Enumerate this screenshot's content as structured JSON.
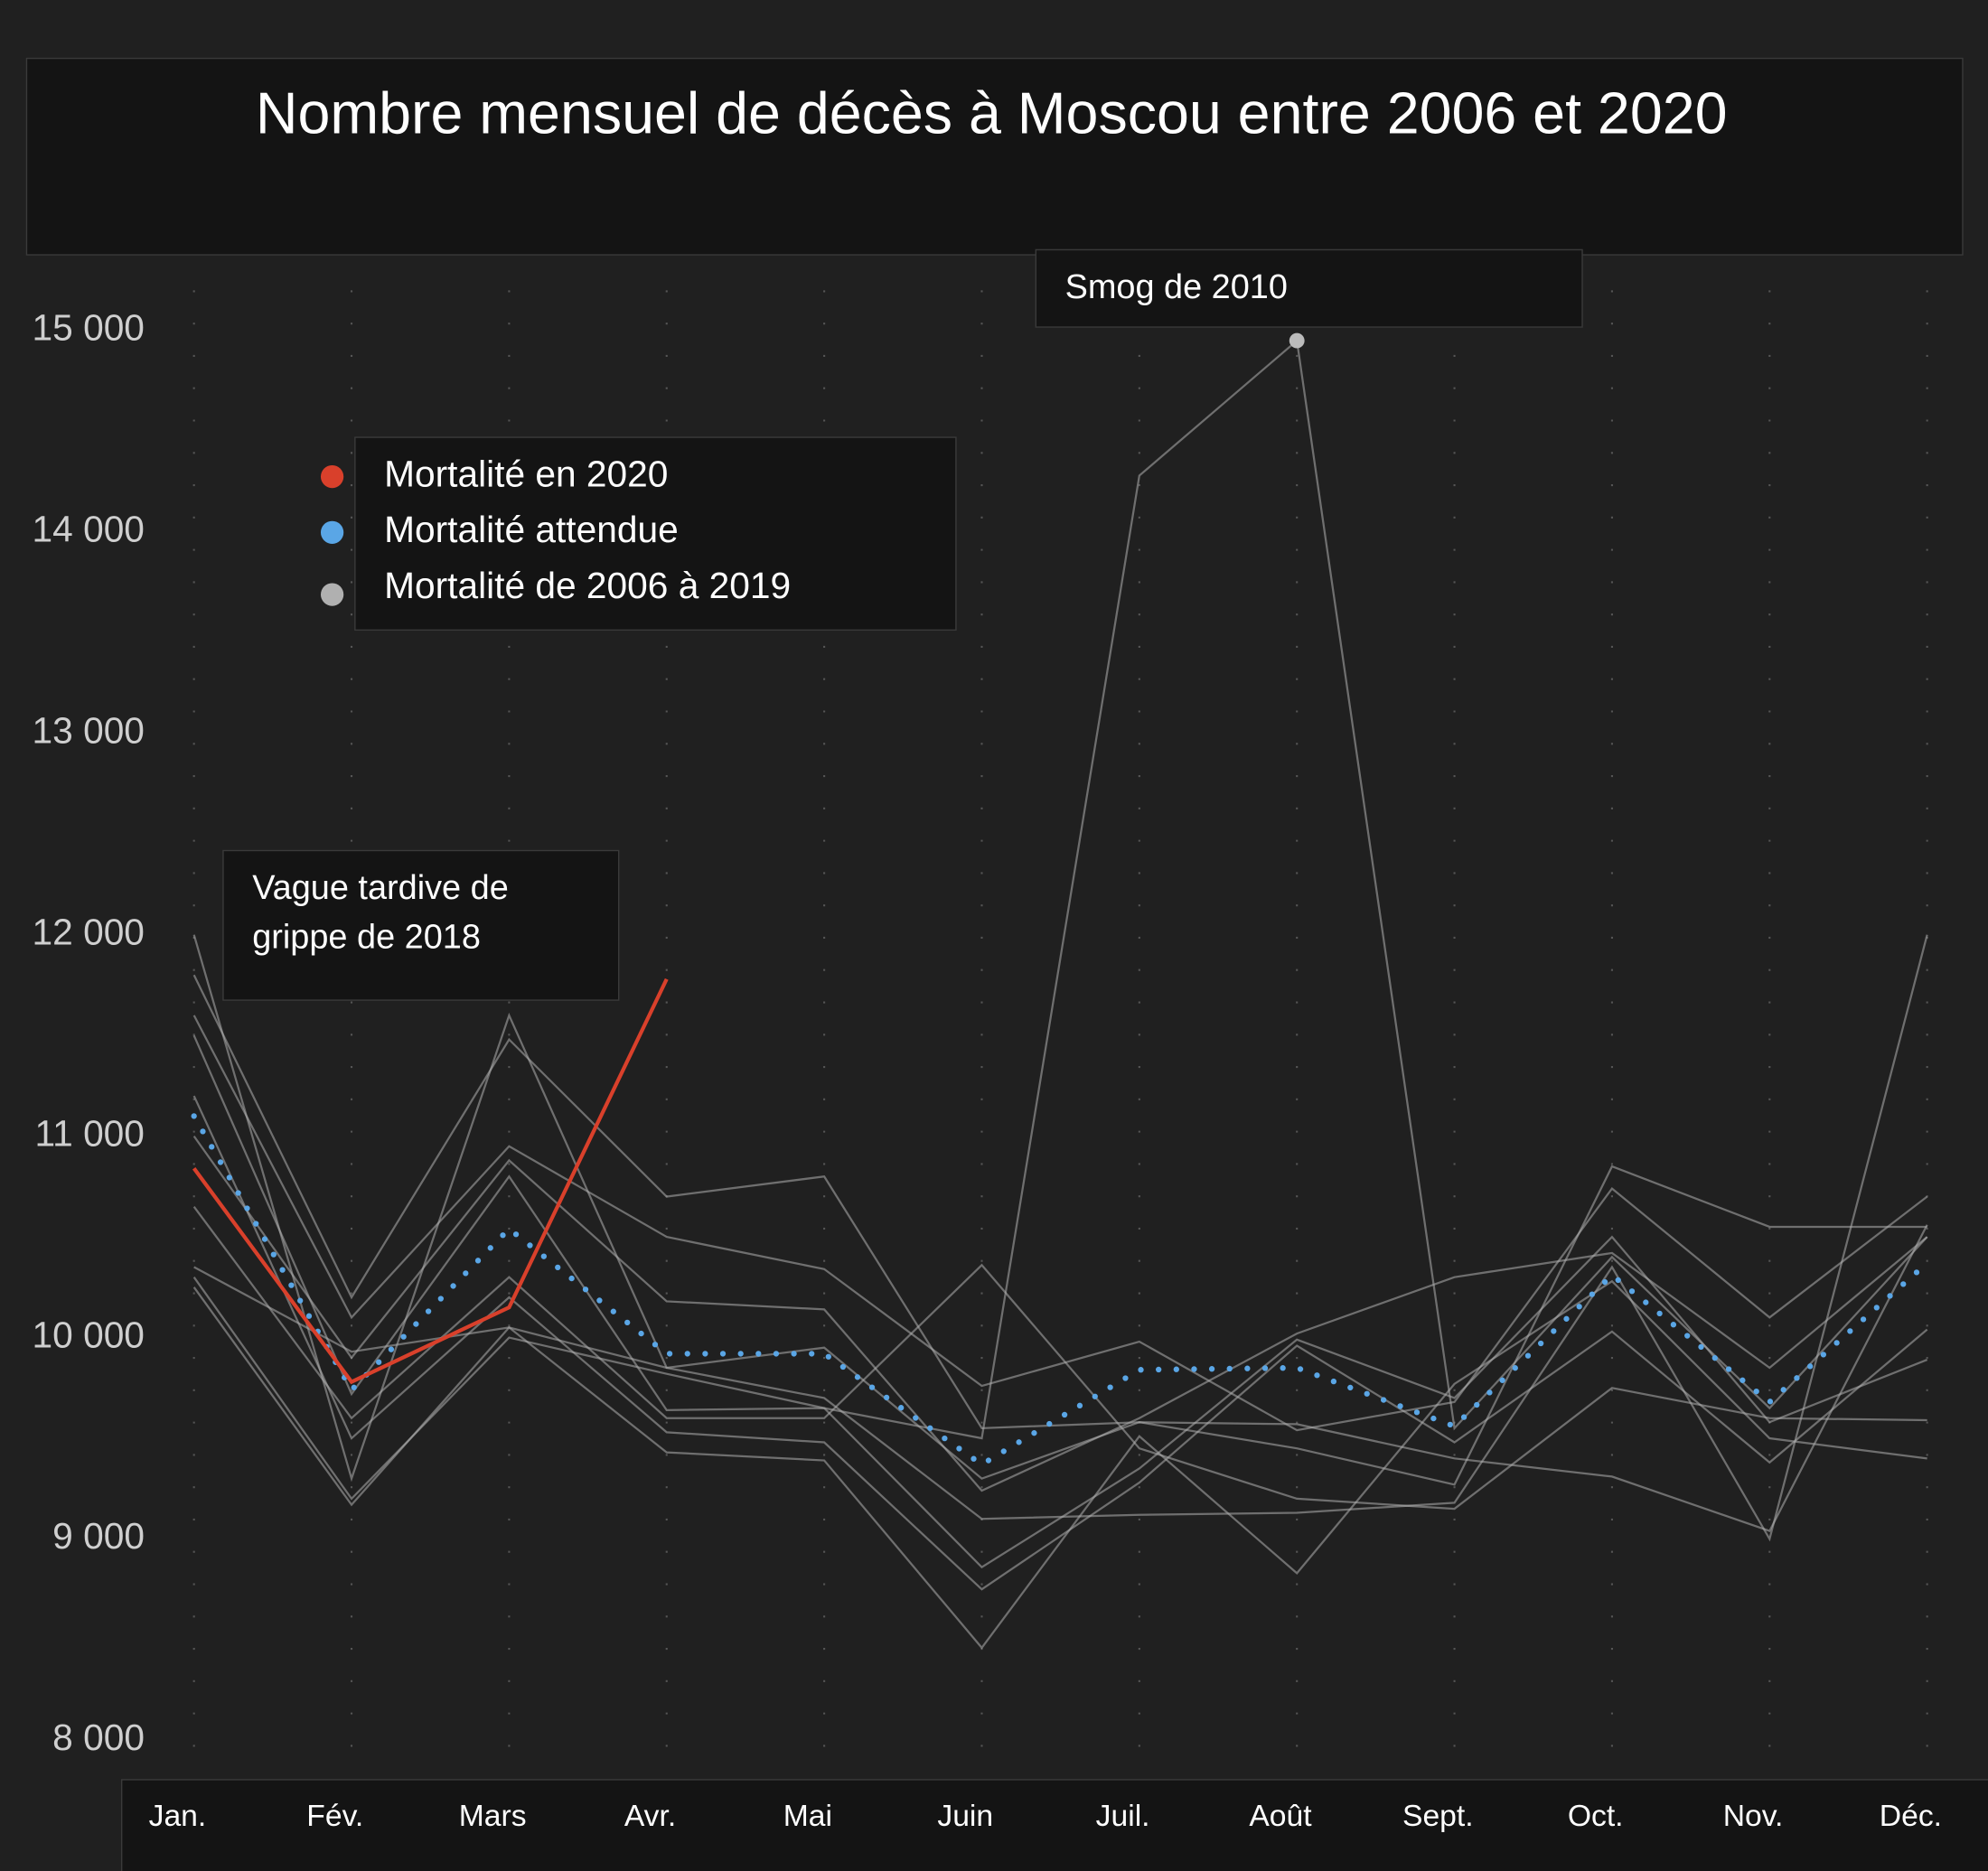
{
  "chart_data": {
    "type": "line",
    "title": "Nombre mensuel de décès à Moscou entre 2006 et 2020",
    "categories": [
      "Jan.",
      "Fév.",
      "Mars",
      "Avr.",
      "Mai",
      "Juin",
      "Juil.",
      "Août",
      "Sept.",
      "Oct.",
      "Nov.",
      "Déc."
    ],
    "ylim": [
      7830,
      15200
    ],
    "yticks": [
      {
        "value": 8000,
        "label": "8 000"
      },
      {
        "value": 9000,
        "label": "9 000"
      },
      {
        "value": 10000,
        "label": "10 000"
      },
      {
        "value": 11000,
        "label": "11 000"
      },
      {
        "value": 12000,
        "label": "12 000"
      },
      {
        "value": 13000,
        "label": "13 000"
      },
      {
        "value": 14000,
        "label": "14 000"
      },
      {
        "value": 15000,
        "label": "15 000"
      }
    ],
    "grid": true,
    "series": [
      {
        "name": "Mortalité en 2020",
        "color": "#d9402b",
        "values": [
          10840,
          9780,
          10150,
          11780,
          null,
          null,
          null,
          null,
          null,
          null,
          null,
          null
        ]
      },
      {
        "name": "Mortalité attendue",
        "color": "#5aa6e6",
        "values": [
          11100,
          9740,
          10540,
          9920,
          9920,
          9370,
          9840,
          9850,
          9560,
          10310,
          9680,
          10370
        ]
      },
      {
        "name": "Mortalité de 2006 à 2019",
        "color": "#b0b0b0",
        "values": [
          [
            10300,
            9200,
            10000,
            9820,
            9650,
            9500,
            14280,
            14950,
            9550,
            10400,
            9650,
            10500
          ],
          [
            12000,
            9300,
            11600,
            9850,
            9700,
            9100,
            9120,
            9130,
            9180,
            10350,
            9000,
            12000
          ],
          [
            11800,
            10200,
            11480,
            10700,
            10800,
            9550,
            9580,
            9450,
            9270,
            10850,
            10550,
            10550
          ],
          [
            11600,
            10100,
            10950,
            10500,
            10340,
            9760,
            9980,
            9540,
            9680,
            10740,
            10100,
            10700
          ],
          [
            11000,
            9900,
            10880,
            10180,
            10140,
            9240,
            9600,
            10020,
            10300,
            10420,
            9850,
            10500
          ],
          [
            10650,
            9600,
            10300,
            9600,
            9600,
            10360,
            9450,
            9200,
            9150,
            9750,
            9600,
            9590
          ],
          [
            10250,
            9170,
            10050,
            9430,
            9390,
            8460,
            9510,
            8830,
            9770,
            10280,
            9500,
            9400
          ],
          [
            11200,
            9500,
            10200,
            9530,
            9480,
            8750,
            9280,
            9960,
            9480,
            10030,
            9380,
            10040
          ],
          [
            11500,
            9720,
            10800,
            9640,
            9650,
            8860,
            9350,
            9990,
            9700,
            10500,
            9580,
            9890
          ],
          [
            10350,
            9930,
            10050,
            9850,
            9950,
            9300,
            9580,
            9570,
            9400,
            9310,
            9040,
            10560
          ]
        ]
      }
    ],
    "annotations": [
      {
        "lines": [
          "Smog de 2010"
        ]
      },
      {
        "lines": [
          "Vague tardive de",
          "grippe de 2018"
        ]
      }
    ]
  }
}
